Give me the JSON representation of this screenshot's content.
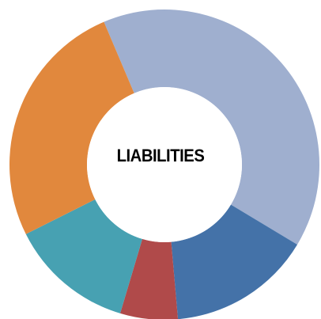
{
  "chart_data": {
    "type": "pie",
    "subtype": "donut",
    "center_label": "LIABILITIES",
    "title": "",
    "legend": "none",
    "slices": [
      {
        "value": 40,
        "color": "#9FAFCF"
      },
      {
        "value": 15,
        "color": "#4472A8"
      },
      {
        "value": 6,
        "color": "#B04A4A"
      },
      {
        "value": 13,
        "color": "#47A1B2"
      },
      {
        "value": 26,
        "color": "#E1883D"
      }
    ],
    "start_angle_deg": -23
  }
}
